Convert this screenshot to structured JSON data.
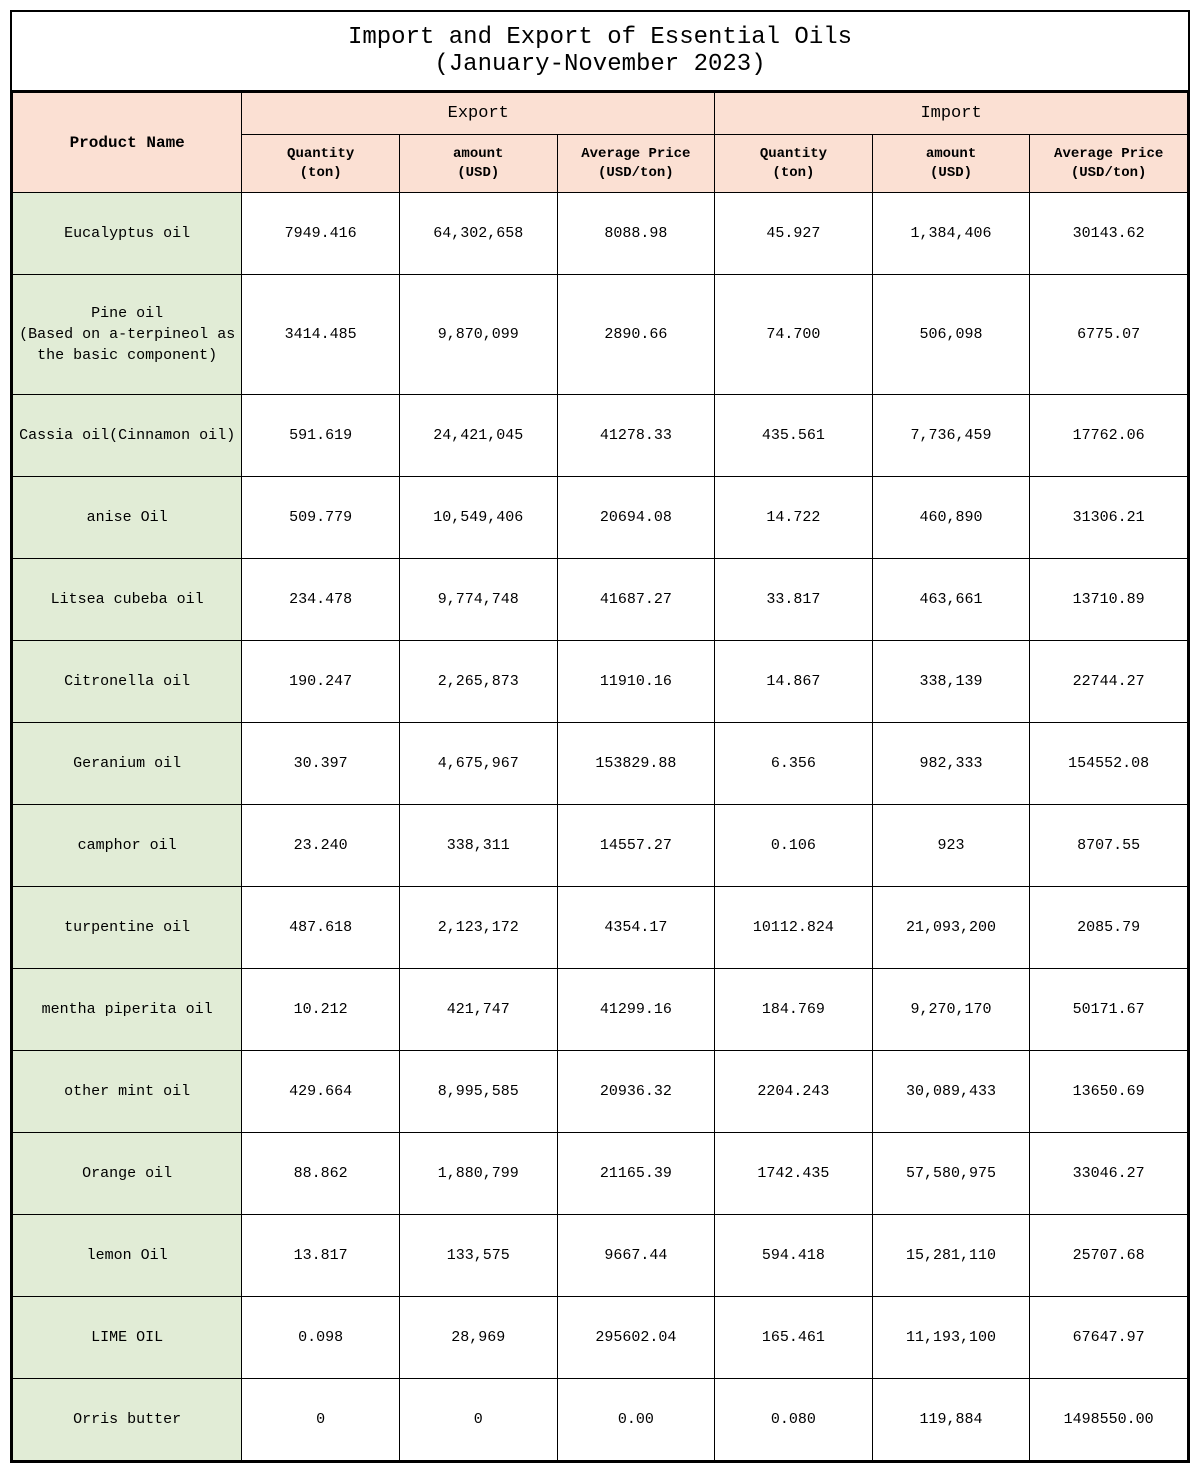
{
  "title": {
    "line1": "Import and Export of Essential Oils",
    "line2": "(January-November 2023)"
  },
  "headers": {
    "product": "Product Name",
    "export": "Export",
    "import": "Import",
    "qty": "Quantity\n(ton)",
    "amt": "amount\n(USD)",
    "avg": "Average Price\n(USD/ton)"
  },
  "rows": [
    {
      "name": "Eucalyptus oil",
      "tall": false,
      "eq": "7949.416",
      "ea": "64,302,658",
      "ep": "8088.98",
      "iq": "45.927",
      "ia": "1,384,406",
      "ip": "30143.62"
    },
    {
      "name": "Pine oil\n(Based on a-terpineol as\nthe basic component)",
      "tall": true,
      "eq": "3414.485",
      "ea": "9,870,099",
      "ep": "2890.66",
      "iq": "74.700",
      "ia": "506,098",
      "ip": "6775.07"
    },
    {
      "name": "Cassia oil(Cinnamon oil)",
      "tall": false,
      "eq": "591.619",
      "ea": "24,421,045",
      "ep": "41278.33",
      "iq": "435.561",
      "ia": "7,736,459",
      "ip": "17762.06"
    },
    {
      "name": "anise Oil",
      "tall": false,
      "eq": "509.779",
      "ea": "10,549,406",
      "ep": "20694.08",
      "iq": "14.722",
      "ia": "460,890",
      "ip": "31306.21"
    },
    {
      "name": "Litsea cubeba oil",
      "tall": false,
      "eq": "234.478",
      "ea": "9,774,748",
      "ep": "41687.27",
      "iq": "33.817",
      "ia": "463,661",
      "ip": "13710.89"
    },
    {
      "name": "Citronella oil",
      "tall": false,
      "eq": "190.247",
      "ea": "2,265,873",
      "ep": "11910.16",
      "iq": "14.867",
      "ia": "338,139",
      "ip": "22744.27"
    },
    {
      "name": "Geranium oil",
      "tall": false,
      "eq": "30.397",
      "ea": "4,675,967",
      "ep": "153829.88",
      "iq": "6.356",
      "ia": "982,333",
      "ip": "154552.08"
    },
    {
      "name": "camphor oil",
      "tall": false,
      "eq": "23.240",
      "ea": "338,311",
      "ep": "14557.27",
      "iq": "0.106",
      "ia": "923",
      "ip": "8707.55"
    },
    {
      "name": "turpentine oil",
      "tall": false,
      "eq": "487.618",
      "ea": "2,123,172",
      "ep": "4354.17",
      "iq": "10112.824",
      "ia": "21,093,200",
      "ip": "2085.79"
    },
    {
      "name": "mentha piperita oil",
      "tall": false,
      "eq": "10.212",
      "ea": "421,747",
      "ep": "41299.16",
      "iq": "184.769",
      "ia": "9,270,170",
      "ip": "50171.67"
    },
    {
      "name": "other mint oil",
      "tall": false,
      "eq": "429.664",
      "ea": "8,995,585",
      "ep": "20936.32",
      "iq": "2204.243",
      "ia": "30,089,433",
      "ip": "13650.69"
    },
    {
      "name": "Orange oil",
      "tall": false,
      "eq": "88.862",
      "ea": "1,880,799",
      "ep": "21165.39",
      "iq": "1742.435",
      "ia": "57,580,975",
      "ip": "33046.27"
    },
    {
      "name": "lemon Oil",
      "tall": false,
      "eq": "13.817",
      "ea": "133,575",
      "ep": "9667.44",
      "iq": "594.418",
      "ia": "15,281,110",
      "ip": "25707.68"
    },
    {
      "name": "LIME OIL",
      "tall": false,
      "eq": "0.098",
      "ea": "28,969",
      "ep": "295602.04",
      "iq": "165.461",
      "ia": "11,193,100",
      "ip": "67647.97"
    },
    {
      "name": "Orris butter",
      "tall": false,
      "eq": "0",
      "ea": "0",
      "ep": "0.00",
      "iq": "0.080",
      "ia": "119,884",
      "ip": "1498550.00"
    }
  ],
  "style": {
    "header_bg": "#fbe0d3",
    "product_bg": "#e1ecd6",
    "data_bg": "#ffffff",
    "border_color": "#000000",
    "font_family": "SimSun, Courier New, monospace"
  }
}
